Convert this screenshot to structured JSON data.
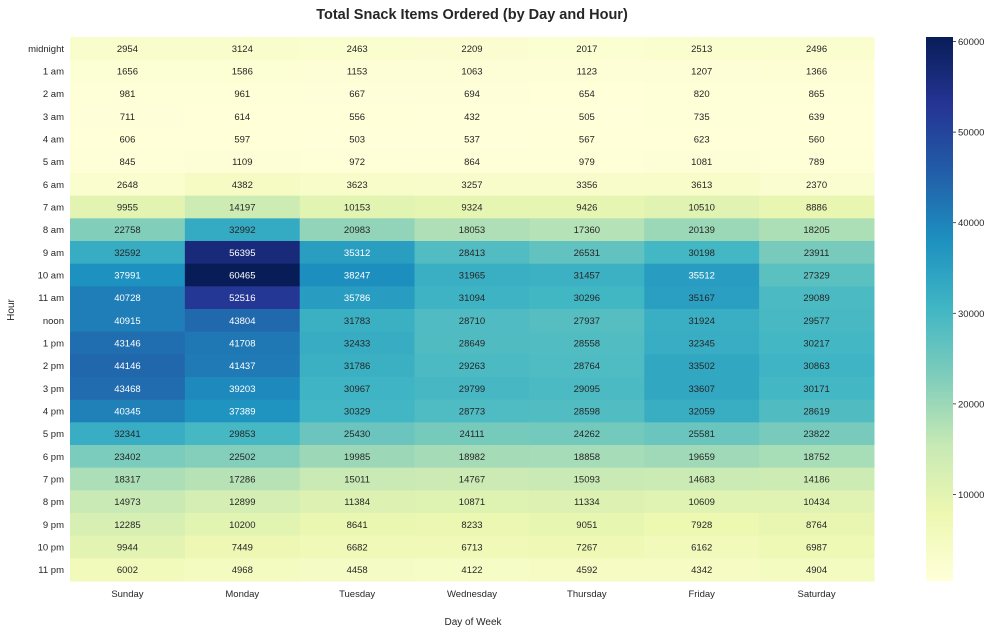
{
  "chart_data": {
    "type": "heatmap",
    "title": "Total Snack Items Ordered (by Day and Hour)",
    "xlabel": "Day of Week",
    "ylabel": "Hour",
    "colormap": "YlGnBu",
    "colorbar": {
      "min": 450,
      "max": 60500,
      "ticks": [
        10000,
        20000,
        30000,
        40000,
        50000,
        60000
      ]
    },
    "columns": [
      "Sunday",
      "Monday",
      "Tuesday",
      "Wednesday",
      "Thursday",
      "Friday",
      "Saturday"
    ],
    "rows": [
      "midnight",
      "1 am",
      "2 am",
      "3 am",
      "4 am",
      "5 am",
      "6 am",
      "7 am",
      "8 am",
      "9 am",
      "10 am",
      "11 am",
      "noon",
      "1 pm",
      "2 pm",
      "3 pm",
      "4 pm",
      "5 pm",
      "6 pm",
      "7 pm",
      "8 pm",
      "9 pm",
      "10 pm",
      "11 pm"
    ],
    "values": [
      [
        2954,
        3124,
        2463,
        2209,
        2017,
        2513,
        2496
      ],
      [
        1656,
        1586,
        1153,
        1063,
        1123,
        1207,
        1366
      ],
      [
        981,
        961,
        667,
        694,
        654,
        820,
        865
      ],
      [
        711,
        614,
        556,
        432,
        505,
        735,
        639
      ],
      [
        606,
        597,
        503,
        537,
        567,
        623,
        560
      ],
      [
        845,
        1109,
        972,
        864,
        979,
        1081,
        789
      ],
      [
        2648,
        4382,
        3623,
        3257,
        3356,
        3613,
        2370
      ],
      [
        9955,
        14197,
        10153,
        9324,
        9426,
        10510,
        8886
      ],
      [
        22758,
        32992,
        20983,
        18053,
        17360,
        20139,
        18205
      ],
      [
        32592,
        56395,
        35312,
        28413,
        26531,
        30198,
        23911
      ],
      [
        37991,
        60465,
        38247,
        31965,
        31457,
        35512,
        27329
      ],
      [
        40728,
        52516,
        35786,
        31094,
        30296,
        35167,
        29089
      ],
      [
        40915,
        43804,
        31783,
        28710,
        27937,
        31924,
        29577
      ],
      [
        43146,
        41708,
        32433,
        28649,
        28558,
        32345,
        30217
      ],
      [
        44146,
        41437,
        31786,
        29263,
        28764,
        33502,
        30863
      ],
      [
        43468,
        39203,
        30967,
        29799,
        29095,
        33607,
        30171
      ],
      [
        40345,
        37389,
        30329,
        28773,
        28598,
        32059,
        28619
      ],
      [
        32341,
        29853,
        25430,
        24111,
        24262,
        25581,
        23822
      ],
      [
        23402,
        22502,
        19985,
        18982,
        18858,
        19659,
        18752
      ],
      [
        18317,
        17286,
        15011,
        14767,
        15093,
        14683,
        14186
      ],
      [
        14973,
        12899,
        11384,
        10871,
        11334,
        10609,
        10434
      ],
      [
        12285,
        10200,
        8641,
        8233,
        9051,
        7928,
        8764
      ],
      [
        9944,
        7449,
        6682,
        6713,
        7267,
        6162,
        6987
      ],
      [
        6002,
        4968,
        4458,
        4122,
        4592,
        4342,
        4904
      ]
    ]
  }
}
